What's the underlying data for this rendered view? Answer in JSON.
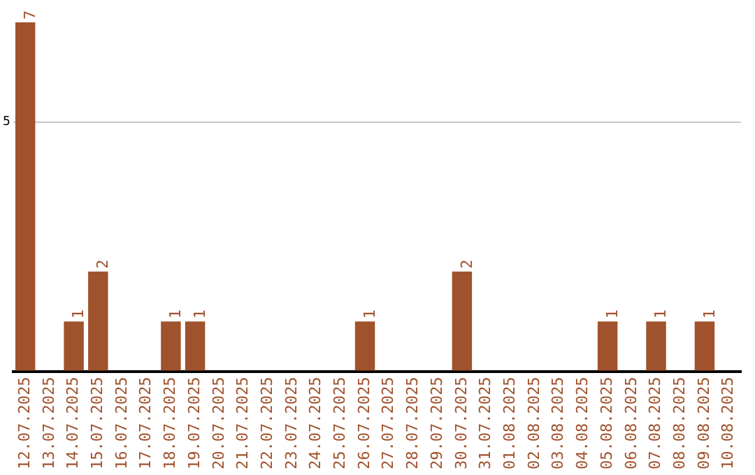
{
  "chart_data": {
    "type": "bar",
    "categories": [
      "12.07.2025",
      "13.07.2025",
      "14.07.2025",
      "15.07.2025",
      "16.07.2025",
      "17.07.2025",
      "18.07.2025",
      "19.07.2025",
      "20.07.2025",
      "21.07.2025",
      "22.07.2025",
      "23.07.2025",
      "24.07.2025",
      "25.07.2025",
      "26.07.2025",
      "27.07.2025",
      "28.07.2025",
      "29.07.2025",
      "30.07.2025",
      "31.07.2025",
      "01.08.2025",
      "02.08.2025",
      "03.08.2025",
      "04.08.2025",
      "05.08.2025",
      "06.08.2025",
      "07.08.2025",
      "08.08.2025",
      "09.08.2025",
      "10.08.2025"
    ],
    "values": [
      7,
      0,
      1,
      2,
      0,
      0,
      1,
      1,
      0,
      0,
      0,
      0,
      0,
      0,
      1,
      0,
      0,
      0,
      2,
      0,
      0,
      0,
      0,
      0,
      1,
      0,
      1,
      0,
      1,
      0
    ],
    "value_labels": [
      "7",
      null,
      "1",
      "2",
      null,
      null,
      "1",
      "1",
      null,
      null,
      null,
      null,
      null,
      null,
      "1",
      null,
      null,
      null,
      "2",
      null,
      null,
      null,
      null,
      null,
      "1",
      null,
      "1",
      null,
      "1",
      null
    ],
    "color": "#a0522d",
    "ylim": [
      0,
      7
    ],
    "yticks": [
      {
        "value": 0,
        "label": null
      },
      5
    ],
    "grid": "y",
    "legend": false
  }
}
